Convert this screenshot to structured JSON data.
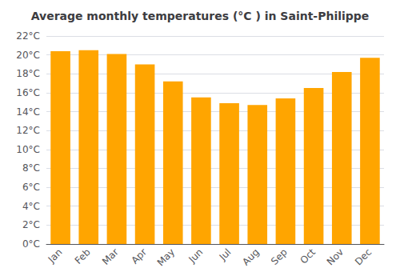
{
  "chart_data": {
    "type": "bar",
    "title": "Average monthly temperatures (°C ) in Saint-Philippe",
    "categories": [
      "Jan",
      "Feb",
      "Mar",
      "Apr",
      "May",
      "Jun",
      "Jul",
      "Aug",
      "Sep",
      "Oct",
      "Nov",
      "Dec"
    ],
    "values": [
      20.4,
      20.5,
      20.1,
      19.0,
      17.2,
      15.5,
      14.9,
      14.7,
      15.4,
      16.5,
      18.2,
      19.7
    ],
    "color": "#FFA500",
    "ylim": [
      0,
      22
    ],
    "yticks": [
      {
        "value": 0,
        "label": "0°C"
      },
      {
        "value": 2,
        "label": "2°C"
      },
      {
        "value": 4,
        "label": "4°C"
      },
      {
        "value": 6,
        "label": "6°C"
      },
      {
        "value": 8,
        "label": "8°C"
      },
      {
        "value": 10,
        "label": "10°C"
      },
      {
        "value": 12,
        "label": "12°C"
      },
      {
        "value": 14,
        "label": "14°C"
      },
      {
        "value": 16,
        "label": "16°C"
      },
      {
        "value": 18,
        "label": "18°C"
      },
      {
        "value": 20,
        "label": "20°C"
      },
      {
        "value": 22,
        "label": "22°C"
      }
    ],
    "grid": true
  }
}
